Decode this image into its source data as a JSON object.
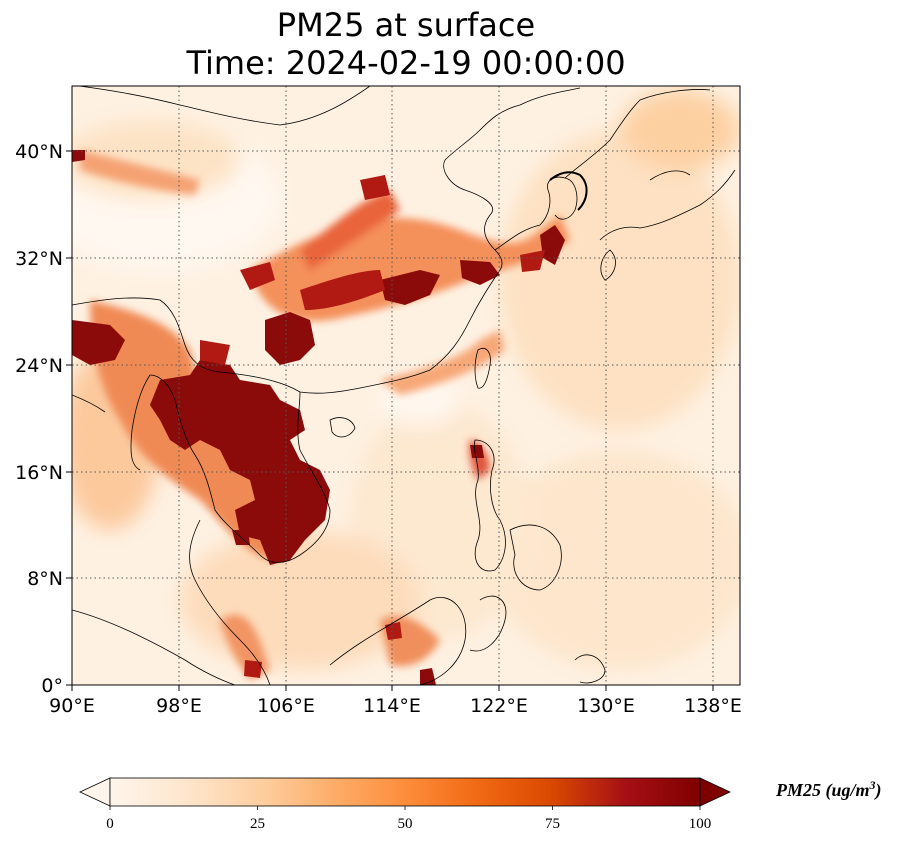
{
  "title_line1": "PM25 at surface",
  "title_line2": "Time: 2024-02-19 00:00:00",
  "map": {
    "lon_range": [
      90,
      140
    ],
    "lat_range": [
      0,
      45
    ],
    "lon_ticks": [
      "90°E",
      "98°E",
      "106°E",
      "114°E",
      "122°E",
      "130°E",
      "138°E"
    ],
    "lat_ticks": [
      "0°",
      "8°N",
      "16°N",
      "24°N",
      "32°N",
      "40°N"
    ],
    "gridlines": "dotted"
  },
  "colorbar": {
    "label_main": "PM25 (ug/m",
    "label_sup": "3",
    "label_close": ")",
    "ticks": [
      "0",
      "25",
      "50",
      "75",
      "100"
    ],
    "range": [
      0,
      100
    ],
    "extend": "both",
    "colormap": [
      "#fff5eb",
      "#fee6ce",
      "#fdd0a2",
      "#fdae6b",
      "#fd8d3c",
      "#f16913",
      "#d94801",
      "#a50f15",
      "#7f0000"
    ]
  },
  "colors": {
    "background_low": "#fef1e2",
    "coast": "#000000",
    "grid": "#555555"
  }
}
